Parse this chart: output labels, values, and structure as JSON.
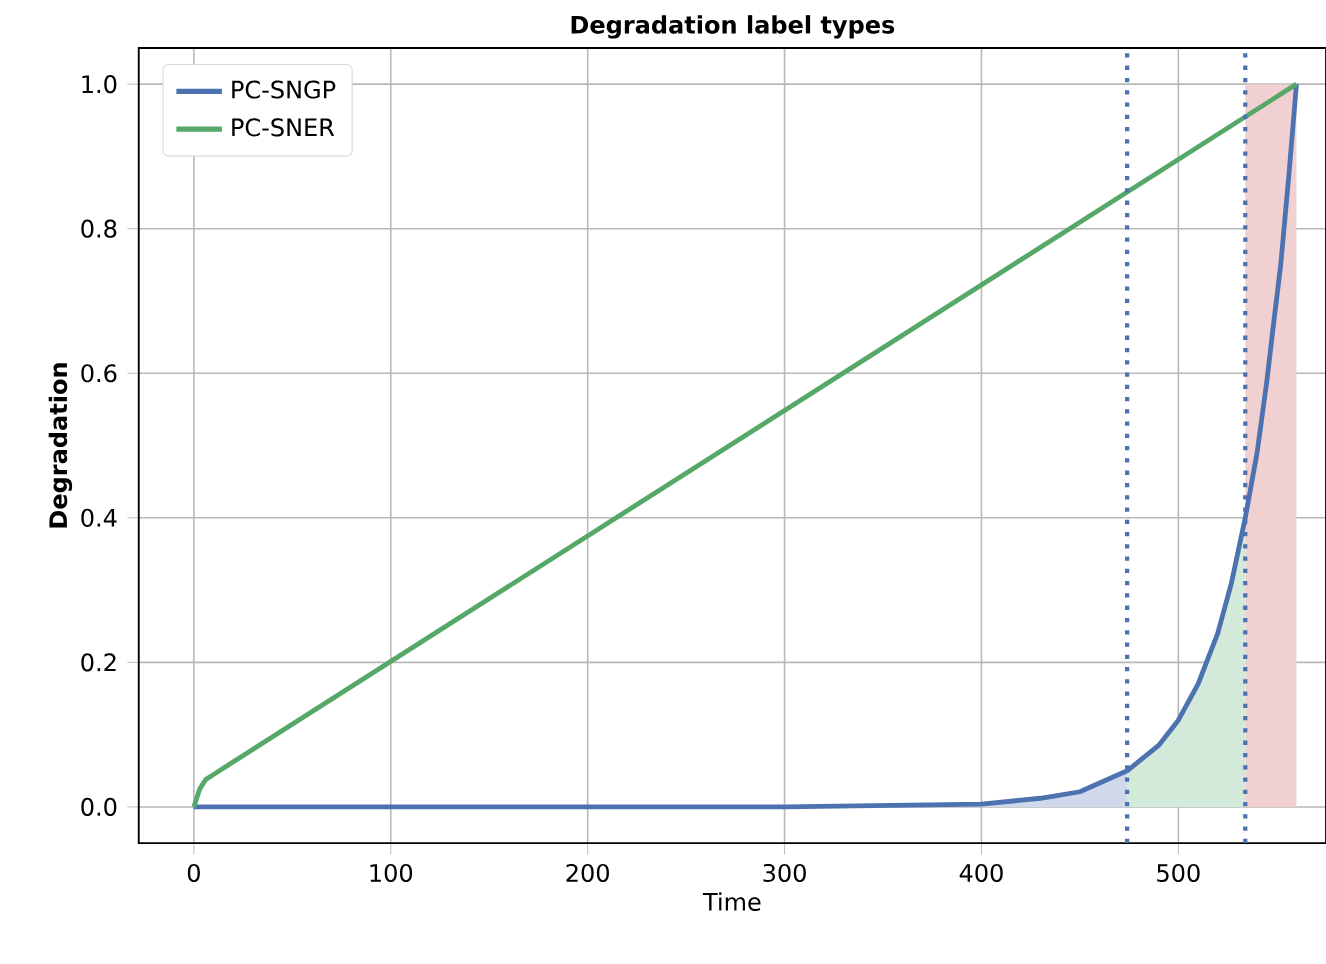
{
  "chart_data": {
    "type": "line",
    "title": "Degradation label types",
    "xlabel": "Time",
    "ylabel": "Degradation",
    "xlim": [
      -28,
      575
    ],
    "ylim": [
      -0.05,
      1.05
    ],
    "xticks": [
      0,
      100,
      200,
      300,
      400,
      500
    ],
    "yticks": [
      {
        "value": 0,
        "label": "0.0"
      },
      {
        "value": 0.2,
        "label": "0.2"
      },
      {
        "value": 0.4,
        "label": "0.4"
      },
      {
        "value": 0.6,
        "label": "0.6"
      },
      {
        "value": 0.8,
        "label": "0.8"
      },
      {
        "value": 1,
        "label": "1.0"
      }
    ],
    "grid": true,
    "legend": "top left",
    "line_style": "solid",
    "marker": "none",
    "series": [
      {
        "type": "area",
        "color": "#d0d9ec",
        "x": [
          0,
          300,
          400,
          430,
          450,
          474
        ],
        "values": [
          0,
          0,
          0.004,
          0.012,
          0.021,
          0.05
        ]
      },
      {
        "type": "area",
        "color": "#d3e9da",
        "x": [
          474,
          490,
          500,
          510,
          520,
          534
        ],
        "values": [
          0.05,
          0.085,
          0.12,
          0.17,
          0.24,
          0.4
        ]
      },
      {
        "type": "area",
        "color": "#f0d0d0",
        "x": [
          534,
          560
        ],
        "values": [
          1,
          1
        ]
      },
      {
        "name": "PC-SNGP",
        "color": "#4c72b0",
        "x": [
          0,
          300,
          400,
          430,
          450,
          474,
          490,
          500,
          510,
          520,
          527,
          534,
          540,
          545,
          548,
          552,
          556,
          560
        ],
        "values": [
          0,
          0,
          0.004,
          0.012,
          0.021,
          0.05,
          0.085,
          0.12,
          0.17,
          0.24,
          0.31,
          0.4,
          0.49,
          0.59,
          0.66,
          0.75,
          0.87,
          1
        ]
      },
      {
        "name": "PC-SNER",
        "color": "#55a868",
        "x": [
          0,
          3,
          6,
          10,
          560
        ],
        "values": [
          0,
          0.025,
          0.038,
          0.045,
          1
        ]
      }
    ],
    "ref_lines": [
      {
        "axis": "x",
        "value": 474,
        "color": "#4c72b0",
        "line_style": "dotted"
      },
      {
        "axis": "x",
        "value": 534,
        "color": "#4c72b0",
        "line_style": "dotted"
      }
    ]
  }
}
